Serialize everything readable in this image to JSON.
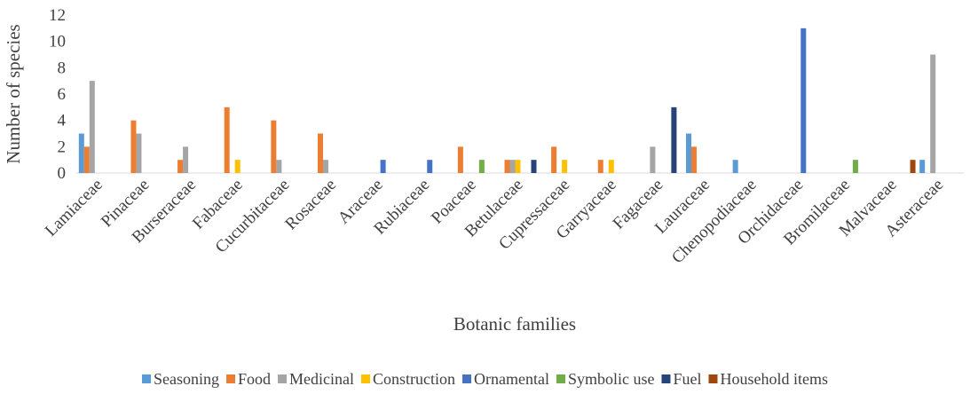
{
  "chart_data": {
    "type": "bar",
    "x_label": "Botanic families",
    "y_label": "Number of species",
    "categories": [
      "Lamiaceae",
      "Pinaceae",
      "Burseraceae",
      "Fabaceae",
      "Cucurbitaceae",
      "Rosaceae",
      "Araceae",
      "Rubiaceae",
      "Poaceae",
      "Betulaceae",
      "Cupressaceae",
      "Garryaceae",
      "Fagaceae",
      "Lauraceae",
      "Chenopodiaceae",
      "Orchidaceae",
      "Bromilaceae",
      "Malvaceae",
      "Asteraceae"
    ],
    "series": [
      {
        "name": "Seasoning",
        "color": "#5b9bd5",
        "values": [
          3,
          0,
          0,
          0,
          0,
          0,
          0,
          0,
          0,
          0,
          0,
          0,
          0,
          3,
          1,
          0,
          0,
          0,
          1
        ]
      },
      {
        "name": "Food",
        "color": "#ed7d31",
        "values": [
          2,
          4,
          1,
          5,
          4,
          3,
          0,
          0,
          2,
          1,
          2,
          1,
          0,
          2,
          0,
          0,
          0,
          0,
          0
        ]
      },
      {
        "name": "Medicinal",
        "color": "#a5a5a5",
        "values": [
          7,
          3,
          2,
          0,
          1,
          1,
          0,
          0,
          0,
          1,
          0,
          0,
          2,
          0,
          0,
          0,
          0,
          0,
          9
        ]
      },
      {
        "name": "Construction",
        "color": "#ffc000",
        "values": [
          0,
          0,
          0,
          1,
          0,
          0,
          0,
          0,
          0,
          1,
          1,
          1,
          0,
          0,
          0,
          0,
          0,
          0,
          0
        ]
      },
      {
        "name": "Ornamental",
        "color": "#4472c4",
        "values": [
          0,
          0,
          0,
          0,
          0,
          0,
          1,
          1,
          0,
          0,
          0,
          0,
          0,
          0,
          0,
          11,
          0,
          0,
          0
        ]
      },
      {
        "name": "Symbolic use",
        "color": "#70ad47",
        "values": [
          0,
          0,
          0,
          0,
          0,
          0,
          0,
          0,
          1,
          0,
          0,
          0,
          0,
          0,
          0,
          0,
          1,
          0,
          0
        ]
      },
      {
        "name": "Fuel",
        "color": "#264478",
        "values": [
          0,
          0,
          0,
          0,
          0,
          0,
          0,
          0,
          0,
          1,
          0,
          0,
          5,
          0,
          0,
          0,
          0,
          0,
          0
        ]
      },
      {
        "name": "Household items",
        "color": "#9e480e",
        "values": [
          0,
          0,
          0,
          0,
          0,
          0,
          0,
          0,
          0,
          0,
          0,
          0,
          0,
          0,
          0,
          0,
          0,
          1,
          0
        ]
      }
    ],
    "ylim": [
      0,
      12
    ],
    "yticks": [
      0,
      2,
      4,
      6,
      8,
      10,
      12
    ],
    "grid": false,
    "legend": "bottom"
  }
}
